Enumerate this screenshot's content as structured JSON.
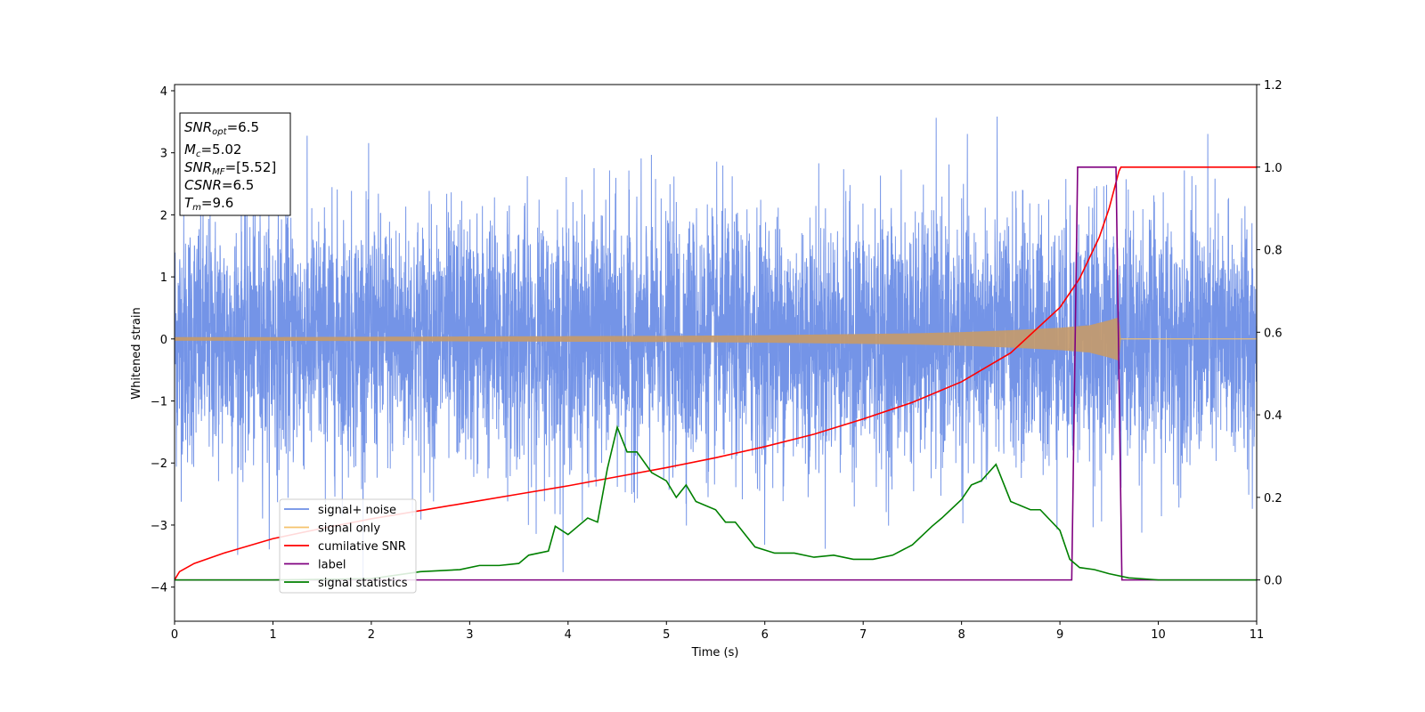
{
  "chart_data": {
    "type": "line",
    "title": "",
    "xlabel": "Time (s)",
    "ylabel": "Whitened strain",
    "y2label": "",
    "xlim": [
      0,
      11
    ],
    "ylim": [
      -4.55,
      4.1
    ],
    "y2lim": [
      -0.1,
      1.2
    ],
    "xticks": [
      0,
      1,
      2,
      3,
      4,
      5,
      6,
      7,
      8,
      9,
      10,
      11
    ],
    "yticks": [
      -4,
      -3,
      -2,
      -1,
      0,
      1,
      2,
      3,
      4
    ],
    "y2ticks": [
      0.0,
      0.2,
      0.4,
      0.6,
      0.8,
      1.0,
      1.2
    ],
    "grid": false,
    "legend_position": "lower-left",
    "info_box": {
      "snr_opt_label": "SNR",
      "snr_opt_sub": "opt",
      "snr_opt_value": "=6.5",
      "mc_label": "M",
      "mc_sub": "c",
      "mc_value": "=5.02",
      "snr_mf_label": "SNR",
      "snr_mf_sub": "MF",
      "snr_mf_value": "=[5.52]",
      "csnr_label": "CSNR",
      "csnr_value": "=6.5",
      "tm_label": "T",
      "tm_sub": "m",
      "tm_value": "=9.6"
    },
    "series": [
      {
        "name": "signal+ noise",
        "axis": "left",
        "color": "#6d8ee6",
        "description_values": {
          "amplitude_sigma": 1.0,
          "typical_peak_range": [
            -2.6,
            3.7
          ],
          "duration": [
            0,
            11
          ]
        }
      },
      {
        "name": "signal only",
        "axis": "left",
        "color": "#f5c26b",
        "envelope": {
          "t": [
            0,
            1,
            2,
            3,
            4,
            5,
            6,
            7,
            7.5,
            8,
            8.5,
            9,
            9.3,
            9.5,
            9.6,
            9.62,
            11
          ],
          "amp": [
            0.03,
            0.03,
            0.035,
            0.04,
            0.045,
            0.05,
            0.06,
            0.08,
            0.09,
            0.11,
            0.14,
            0.18,
            0.22,
            0.3,
            0.35,
            0.0,
            0.0
          ]
        }
      },
      {
        "name": "cumilative SNR",
        "axis": "right",
        "color": "#ff0000",
        "x": [
          0,
          0.05,
          0.2,
          0.5,
          1,
          1.5,
          2,
          2.5,
          3,
          3.5,
          4,
          4.5,
          5,
          5.5,
          6,
          6.5,
          7,
          7.5,
          8,
          8.5,
          9,
          9.2,
          9.4,
          9.5,
          9.6,
          9.62,
          11
        ],
        "values": [
          0.0,
          0.02,
          0.04,
          0.065,
          0.1,
          0.125,
          0.148,
          0.168,
          0.188,
          0.208,
          0.228,
          0.25,
          0.272,
          0.296,
          0.323,
          0.353,
          0.39,
          0.43,
          0.48,
          0.55,
          0.66,
          0.73,
          0.83,
          0.9,
          0.99,
          1.0,
          1.0
        ]
      },
      {
        "name": "label",
        "axis": "right",
        "color": "#800080",
        "x": [
          0,
          9.12,
          9.18,
          9.57,
          9.63,
          11
        ],
        "values": [
          0,
          0,
          1,
          1,
          0,
          0
        ]
      },
      {
        "name": "signal statistics",
        "axis": "right",
        "color": "#008000",
        "x": [
          0,
          1,
          2,
          2.5,
          2.9,
          3.1,
          3.3,
          3.5,
          3.6,
          3.8,
          3.87,
          4.0,
          4.1,
          4.2,
          4.3,
          4.4,
          4.5,
          4.6,
          4.7,
          4.85,
          5.0,
          5.1,
          5.2,
          5.3,
          5.5,
          5.6,
          5.7,
          5.9,
          6.1,
          6.3,
          6.5,
          6.7,
          6.9,
          7.1,
          7.3,
          7.5,
          7.7,
          7.8,
          8.0,
          8.1,
          8.2,
          8.35,
          8.5,
          8.7,
          8.8,
          9.0,
          9.1,
          9.2,
          9.35,
          9.5,
          9.7,
          10,
          11
        ],
        "values": [
          0.0,
          0.0,
          0.003,
          0.02,
          0.025,
          0.035,
          0.035,
          0.04,
          0.06,
          0.07,
          0.13,
          0.11,
          0.13,
          0.15,
          0.14,
          0.27,
          0.37,
          0.31,
          0.31,
          0.26,
          0.24,
          0.2,
          0.23,
          0.19,
          0.17,
          0.14,
          0.14,
          0.08,
          0.065,
          0.065,
          0.055,
          0.06,
          0.05,
          0.05,
          0.06,
          0.085,
          0.13,
          0.15,
          0.195,
          0.23,
          0.24,
          0.28,
          0.19,
          0.17,
          0.17,
          0.12,
          0.05,
          0.03,
          0.025,
          0.015,
          0.005,
          0.0,
          0.0
        ]
      }
    ]
  }
}
